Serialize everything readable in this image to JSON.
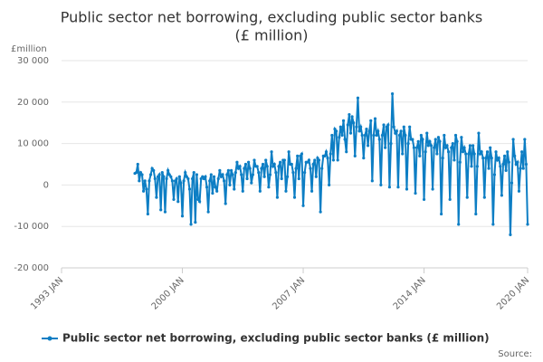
{
  "chart_data": {
    "type": "line",
    "title_lines": [
      "Public sector net borrowing, excluding public sector banks",
      "(£ million)"
    ],
    "y_unit_label": "£million",
    "source_label": "Source:",
    "x": [
      "1997 APR",
      "1997 MAY",
      "1997 JUN",
      "1997 JUL",
      "1997 AUG",
      "1997 SEP",
      "1997 OCT",
      "1997 NOV",
      "1997 DEC",
      "1998 JAN",
      "1998 FEB",
      "1998 MAR",
      "1998 APR",
      "1998 MAY",
      "1998 JUN",
      "1998 JUL",
      "1998 AUG",
      "1998 SEP",
      "1998 OCT",
      "1998 NOV",
      "1998 DEC",
      "1999 JAN",
      "1999 FEB",
      "1999 MAR",
      "1999 APR",
      "1999 MAY",
      "1999 JUN",
      "1999 JUL",
      "1999 AUG",
      "1999 SEP",
      "1999 OCT",
      "1999 NOV",
      "1999 DEC",
      "2000 JAN",
      "2000 FEB",
      "2000 MAR",
      "2000 APR",
      "2000 MAY",
      "2000 JUN",
      "2000 JUL",
      "2000 AUG",
      "2000 SEP",
      "2000 OCT",
      "2000 NOV",
      "2000 DEC",
      "2001 JAN",
      "2001 FEB",
      "2001 MAR",
      "2001 APR",
      "2001 MAY",
      "2001 JUN",
      "2001 JUL",
      "2001 AUG",
      "2001 SEP",
      "2001 OCT",
      "2001 NOV",
      "2001 DEC",
      "2002 JAN",
      "2002 FEB",
      "2002 MAR",
      "2002 APR",
      "2002 MAY",
      "2002 JUN",
      "2002 JUL",
      "2002 AUG",
      "2002 SEP",
      "2002 OCT",
      "2002 NOV",
      "2002 DEC",
      "2003 JAN",
      "2003 FEB",
      "2003 MAR",
      "2003 APR",
      "2003 MAY",
      "2003 JUN",
      "2003 JUL",
      "2003 AUG",
      "2003 SEP",
      "2003 OCT",
      "2003 NOV",
      "2003 DEC",
      "2004 JAN",
      "2004 FEB",
      "2004 MAR",
      "2004 APR",
      "2004 MAY",
      "2004 JUN",
      "2004 JUL",
      "2004 AUG",
      "2004 SEP",
      "2004 OCT",
      "2004 NOV",
      "2004 DEC",
      "2005 JAN",
      "2005 FEB",
      "2005 MAR",
      "2005 APR",
      "2005 MAY",
      "2005 JUN",
      "2005 JUL",
      "2005 AUG",
      "2005 SEP",
      "2005 OCT",
      "2005 NOV",
      "2005 DEC",
      "2006 JAN",
      "2006 FEB",
      "2006 MAR",
      "2006 APR",
      "2006 MAY",
      "2006 JUN",
      "2006 JUL",
      "2006 AUG",
      "2006 SEP",
      "2006 OCT",
      "2006 NOV",
      "2006 DEC",
      "2007 JAN",
      "2007 FEB",
      "2007 MAR",
      "2007 APR",
      "2007 MAY",
      "2007 JUN",
      "2007 JUL",
      "2007 AUG",
      "2007 SEP",
      "2007 OCT",
      "2007 NOV",
      "2007 DEC",
      "2008 JAN",
      "2008 FEB",
      "2008 MAR",
      "2008 APR",
      "2008 MAY",
      "2008 JUN",
      "2008 JUL",
      "2008 AUG",
      "2008 SEP",
      "2008 OCT",
      "2008 NOV",
      "2008 DEC",
      "2009 JAN",
      "2009 FEB",
      "2009 MAR",
      "2009 APR",
      "2009 MAY",
      "2009 JUN",
      "2009 JUL",
      "2009 AUG",
      "2009 SEP",
      "2009 OCT",
      "2009 NOV",
      "2009 DEC",
      "2010 JAN",
      "2010 FEB",
      "2010 MAR",
      "2010 APR",
      "2010 MAY",
      "2010 JUN",
      "2010 JUL",
      "2010 AUG",
      "2010 SEP",
      "2010 OCT",
      "2010 NOV",
      "2010 DEC",
      "2011 JAN",
      "2011 FEB",
      "2011 MAR",
      "2011 APR",
      "2011 MAY",
      "2011 JUN",
      "2011 JUL",
      "2011 AUG",
      "2011 SEP",
      "2011 OCT",
      "2011 NOV",
      "2011 DEC",
      "2012 JAN",
      "2012 FEB",
      "2012 MAR",
      "2012 APR",
      "2012 MAY",
      "2012 JUN",
      "2012 JUL",
      "2012 AUG",
      "2012 SEP",
      "2012 OCT",
      "2012 NOV",
      "2012 DEC",
      "2013 JAN",
      "2013 FEB",
      "2013 MAR",
      "2013 APR",
      "2013 MAY",
      "2013 JUN",
      "2013 JUL",
      "2013 AUG",
      "2013 SEP",
      "2013 OCT",
      "2013 NOV",
      "2013 DEC",
      "2014 JAN",
      "2014 FEB",
      "2014 MAR",
      "2014 APR",
      "2014 MAY",
      "2014 JUN",
      "2014 JUL",
      "2014 AUG",
      "2014 SEP",
      "2014 OCT",
      "2014 NOV",
      "2014 DEC",
      "2015 JAN",
      "2015 FEB",
      "2015 MAR",
      "2015 APR",
      "2015 MAY",
      "2015 JUN",
      "2015 JUL",
      "2015 AUG",
      "2015 SEP",
      "2015 OCT",
      "2015 NOV",
      "2015 DEC",
      "2016 JAN",
      "2016 FEB",
      "2016 MAR",
      "2016 APR",
      "2016 MAY",
      "2016 JUN",
      "2016 JUL",
      "2016 AUG",
      "2016 SEP",
      "2016 OCT",
      "2016 NOV",
      "2016 DEC",
      "2017 JAN",
      "2017 FEB",
      "2017 MAR",
      "2017 APR",
      "2017 MAY",
      "2017 JUN",
      "2017 JUL",
      "2017 AUG",
      "2017 SEP",
      "2017 OCT",
      "2017 NOV",
      "2017 DEC",
      "2018 JAN",
      "2018 FEB",
      "2018 MAR",
      "2018 APR",
      "2018 MAY",
      "2018 JUN",
      "2018 JUL",
      "2018 AUG",
      "2018 SEP",
      "2018 OCT",
      "2018 NOV",
      "2018 DEC",
      "2019 JAN",
      "2019 FEB",
      "2019 MAR",
      "2019 APR",
      "2019 MAY",
      "2019 JUN",
      "2019 JUL",
      "2019 AUG",
      "2019 SEP",
      "2019 OCT",
      "2019 NOV",
      "2019 DEC",
      "2020 JAN"
    ],
    "series": [
      {
        "name": "Public sector net borrowing, excluding public sector banks (£ million)",
        "color": "#0d7ec4",
        "values": [
          2800,
          3000,
          5000,
          1000,
          3000,
          2500,
          -1500,
          1000,
          -1000,
          -7000,
          1000,
          2500,
          4000,
          3500,
          1500,
          -3000,
          2000,
          2500,
          -6000,
          3000,
          2000,
          -6500,
          1500,
          3500,
          2500,
          2000,
          1000,
          -3500,
          1000,
          1500,
          -4000,
          2000,
          500,
          -7500,
          1000,
          3000,
          2000,
          1500,
          -1000,
          -9500,
          1500,
          3000,
          -9000,
          2500,
          -3500,
          -4000,
          1500,
          2000,
          1500,
          2000,
          -500,
          -6500,
          1000,
          2500,
          -2000,
          2000,
          -500,
          -1500,
          1500,
          3500,
          2000,
          2500,
          1000,
          -4500,
          2500,
          3500,
          0,
          3500,
          2500,
          -1000,
          3000,
          5500,
          4000,
          4500,
          2500,
          -1500,
          4000,
          5000,
          1500,
          5500,
          4000,
          500,
          2500,
          6000,
          4500,
          4500,
          3000,
          -1500,
          4000,
          5000,
          2000,
          6000,
          4500,
          -500,
          2500,
          8000,
          4500,
          5000,
          3000,
          -3000,
          4500,
          5500,
          1500,
          6000,
          6000,
          -1500,
          2000,
          8000,
          5000,
          5000,
          3000,
          -3000,
          4000,
          7000,
          1500,
          7000,
          7500,
          -5000,
          3000,
          5500,
          5500,
          6000,
          4000,
          -1500,
          5000,
          6000,
          2000,
          6500,
          6000,
          -6500,
          4000,
          7000,
          7000,
          8000,
          6500,
          0,
          7500,
          12000,
          6000,
          13500,
          13000,
          6000,
          11500,
          14000,
          12000,
          15500,
          11000,
          8000,
          14500,
          17000,
          12500,
          16500,
          15000,
          7000,
          14000,
          21000,
          13000,
          14000,
          12000,
          6500,
          12000,
          13500,
          9500,
          13000,
          15500,
          1000,
          12000,
          16000,
          12000,
          13000,
          11000,
          0,
          12000,
          14500,
          9000,
          14000,
          14500,
          -500,
          10000,
          22000,
          14000,
          12500,
          13000,
          -500,
          12000,
          13000,
          7500,
          14000,
          12000,
          -1000,
          10000,
          14000,
          11000,
          11000,
          9000,
          -2000,
          9000,
          10500,
          7000,
          12000,
          11000,
          -3500,
          8000,
          12500,
          9500,
          10500,
          9500,
          -1000,
          9000,
          11000,
          7500,
          11500,
          10500,
          -7000,
          6500,
          12000,
          9000,
          9500,
          8000,
          -3500,
          9000,
          10000,
          6000,
          12000,
          10500,
          -9500,
          5500,
          11500,
          8000,
          9000,
          7500,
          -3000,
          7500,
          9500,
          4500,
          9500,
          7500,
          -7000,
          4500,
          12500,
          7500,
          8000,
          6500,
          -3000,
          6500,
          8000,
          4000,
          9000,
          6500,
          -9500,
          2500,
          8000,
          6000,
          6500,
          4500,
          -2500,
          5000,
          7000,
          3500,
          8000,
          5500,
          -12000,
          500,
          11000,
          7000,
          5000,
          5500,
          -1500,
          4000,
          8000,
          4000,
          11000,
          5000,
          -9500
        ]
      }
    ],
    "xlim": [
      "1993 JAN",
      "2020 JAN"
    ],
    "xticks": [
      "1993 JAN",
      "2000 JAN",
      "2007 JAN",
      "2014 JAN",
      "2020 JAN"
    ],
    "ylim": [
      -20000,
      30000
    ],
    "yticks": [
      {
        "value": -20000,
        "label": "-20 000"
      },
      {
        "value": -10000,
        "label": "-10 000"
      },
      0,
      {
        "value": 10000,
        "label": "10 000"
      },
      {
        "value": 20000,
        "label": "20 000"
      },
      {
        "value": 30000,
        "label": "30 000"
      }
    ],
    "grid": true,
    "legend": "bottom"
  }
}
